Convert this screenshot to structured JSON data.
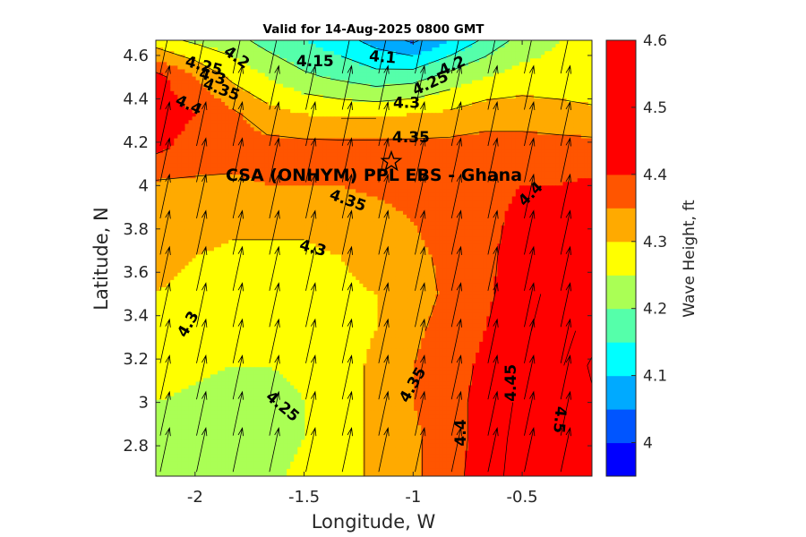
{
  "chart_data": {
    "type": "heatmap",
    "title": "Valid for 14-Aug-2025 0800 GMT",
    "xlabel": "Longitude, W",
    "ylabel": "Latitude, N",
    "colorbar_label": "Wave Height, ft",
    "xlim": [
      -2.18,
      -0.18
    ],
    "ylim": [
      2.66,
      4.67
    ],
    "x_ticks": [
      {
        "value": -2,
        "label": "-2"
      },
      {
        "value": -1.5,
        "label": "-1.5"
      },
      {
        "value": -1,
        "label": "-1"
      },
      {
        "value": -0.5,
        "label": "-0.5"
      }
    ],
    "y_ticks": [
      {
        "value": 2.8,
        "label": "2.8"
      },
      {
        "value": 3,
        "label": "3"
      },
      {
        "value": 3.2,
        "label": "3.2"
      },
      {
        "value": 3.4,
        "label": "3.4"
      },
      {
        "value": 3.6,
        "label": "3.6"
      },
      {
        "value": 3.8,
        "label": "3.8"
      },
      {
        "value": 4,
        "label": "4"
      },
      {
        "value": 4.2,
        "label": "4.2"
      },
      {
        "value": 4.4,
        "label": "4.4"
      },
      {
        "value": 4.6,
        "label": "4.6"
      }
    ],
    "color_levels": [
      3.95,
      4.0,
      4.05,
      4.1,
      4.15,
      4.2,
      4.25,
      4.3,
      4.35,
      4.4,
      4.45,
      4.5,
      4.55,
      4.6
    ],
    "colors": [
      "#0000ff",
      "#0055ff",
      "#00aaff",
      "#00ffff",
      "#55ffaa",
      "#aaff55",
      "#ffff00",
      "#ffaa00",
      "#ff5500",
      "#ff0000"
    ],
    "colorbar_ticks": [
      {
        "value": 4.0,
        "label": "4"
      },
      {
        "value": 4.1,
        "label": "4.1"
      },
      {
        "value": 4.2,
        "label": "4.2"
      },
      {
        "value": 4.3,
        "label": "4.3"
      },
      {
        "value": 4.4,
        "label": "4.4"
      },
      {
        "value": 4.5,
        "label": "4.5"
      },
      {
        "value": 4.6,
        "label": "4.6"
      }
    ],
    "grid_x": [
      -2.18,
      -2.0,
      -1.83,
      -1.67,
      -1.5,
      -1.33,
      -1.17,
      -1.0,
      -0.83,
      -0.67,
      -0.5,
      -0.33,
      -0.18
    ],
    "grid_y": [
      2.66,
      2.83,
      3.0,
      3.17,
      3.33,
      3.5,
      3.67,
      3.83,
      4.0,
      4.17,
      4.33,
      4.5,
      4.67
    ],
    "z_rows_bottom_to_top": [
      [
        4.21,
        4.22,
        4.23,
        4.24,
        4.26,
        4.28,
        4.31,
        4.34,
        4.38,
        4.43,
        4.47,
        4.5,
        4.52
      ],
      [
        4.21,
        4.22,
        4.22,
        4.23,
        4.25,
        4.28,
        4.31,
        4.34,
        4.38,
        4.42,
        4.47,
        4.5,
        4.53
      ],
      [
        4.25,
        4.24,
        4.23,
        4.23,
        4.25,
        4.28,
        4.31,
        4.35,
        4.38,
        4.42,
        4.46,
        4.5,
        4.54
      ],
      [
        4.27,
        4.26,
        4.25,
        4.25,
        4.26,
        4.28,
        4.31,
        4.35,
        4.38,
        4.41,
        4.45,
        4.49,
        4.56
      ],
      [
        4.29,
        4.28,
        4.27,
        4.27,
        4.27,
        4.28,
        4.3,
        4.34,
        4.37,
        4.4,
        4.44,
        4.48,
        4.52
      ],
      [
        4.3,
        4.29,
        4.28,
        4.28,
        4.28,
        4.29,
        4.3,
        4.33,
        4.36,
        4.39,
        4.43,
        4.47,
        4.5
      ],
      [
        4.31,
        4.3,
        4.29,
        4.29,
        4.29,
        4.3,
        4.32,
        4.34,
        4.36,
        4.39,
        4.42,
        4.45,
        4.48
      ],
      [
        4.32,
        4.32,
        4.31,
        4.31,
        4.31,
        4.32,
        4.33,
        4.35,
        4.37,
        4.39,
        4.41,
        4.43,
        4.45
      ],
      [
        4.34,
        4.34,
        4.34,
        4.35,
        4.35,
        4.35,
        4.36,
        4.37,
        4.38,
        4.39,
        4.4,
        4.4,
        4.41
      ],
      [
        4.41,
        4.38,
        4.37,
        4.37,
        4.37,
        4.37,
        4.37,
        4.37,
        4.37,
        4.37,
        4.37,
        4.37,
        4.37
      ],
      [
        4.43,
        4.4,
        4.36,
        4.32,
        4.3,
        4.29,
        4.29,
        4.3,
        4.31,
        4.33,
        4.33,
        4.32,
        4.31
      ],
      [
        4.42,
        4.35,
        4.29,
        4.25,
        4.21,
        4.19,
        4.17,
        4.18,
        4.22,
        4.25,
        4.27,
        4.27,
        4.27
      ],
      [
        4.27,
        4.24,
        4.22,
        4.18,
        4.15,
        4.12,
        4.08,
        4.04,
        4.1,
        4.16,
        4.22,
        4.25,
        4.26
      ]
    ],
    "contour_labels": [
      {
        "text": "4.2",
        "x": -1.81,
        "y": 4.59,
        "rotate": 35
      },
      {
        "text": "4.25",
        "x": -1.96,
        "y": 4.55,
        "rotate": 15
      },
      {
        "text": "4.3",
        "x": -1.92,
        "y": 4.5,
        "rotate": 15
      },
      {
        "text": "4.35",
        "x": -1.88,
        "y": 4.44,
        "rotate": 20
      },
      {
        "text": "4.4",
        "x": -2.03,
        "y": 4.37,
        "rotate": 25
      },
      {
        "text": "4.15",
        "x": -1.45,
        "y": 4.57,
        "rotate": 0
      },
      {
        "text": "4.1",
        "x": -1.14,
        "y": 4.59,
        "rotate": 5
      },
      {
        "text": "4.2",
        "x": -0.82,
        "y": 4.55,
        "rotate": -25
      },
      {
        "text": "4.25",
        "x": -0.92,
        "y": 4.47,
        "rotate": -25
      },
      {
        "text": "4.3",
        "x": -1.03,
        "y": 4.38,
        "rotate": 0
      },
      {
        "text": "4.35",
        "x": -1.01,
        "y": 4.22,
        "rotate": 0
      },
      {
        "text": "4.35",
        "x": -1.3,
        "y": 3.93,
        "rotate": 20
      },
      {
        "text": "4.4",
        "x": -0.46,
        "y": 3.96,
        "rotate": -45
      },
      {
        "text": "4.3",
        "x": -1.46,
        "y": 3.71,
        "rotate": 15
      },
      {
        "text": "4.3",
        "x": -2.03,
        "y": 3.36,
        "rotate": -60
      },
      {
        "text": "4.25",
        "x": -1.6,
        "y": 2.98,
        "rotate": 40
      },
      {
        "text": "4.35",
        "x": -1.0,
        "y": 3.08,
        "rotate": -60
      },
      {
        "text": "4.4",
        "x": -0.78,
        "y": 2.86,
        "rotate": -90
      },
      {
        "text": "4.45",
        "x": -0.55,
        "y": 3.09,
        "rotate": -90
      },
      {
        "text": "4.5",
        "x": -0.33,
        "y": 2.92,
        "rotate": 95
      }
    ],
    "site_marker": {
      "x": -1.1,
      "y": 4.11,
      "shape": "star"
    },
    "annotation": {
      "text": "CSA (ONHYM) PPL EBS  - Ghana",
      "x": -1.18,
      "y": 4.05
    },
    "vector_field": {
      "angle_deg_from_north": 12,
      "spacing_deg": 0.167
    }
  }
}
